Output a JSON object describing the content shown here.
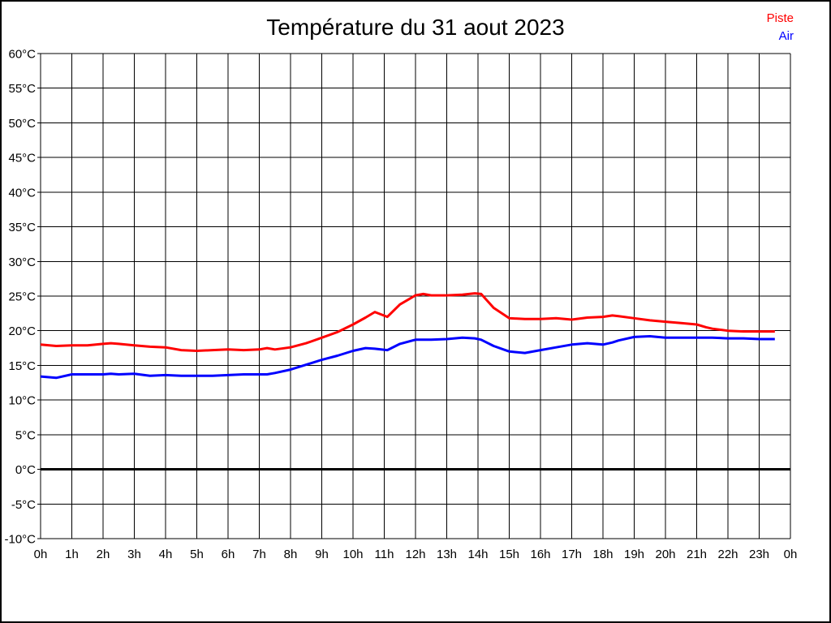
{
  "title": "Température du 31 aout 2023",
  "legend": [
    {
      "label": "Piste",
      "color": "#ff0000"
    },
    {
      "label": "Air",
      "color": "#0000ff"
    }
  ],
  "colors": {
    "piste_line": "#ff0000",
    "air_line": "#0000ff",
    "grid": "#000000",
    "zero_line": "#000000",
    "background": "#ffffff"
  },
  "chart_data": {
    "type": "line",
    "title": "Température du 31 aout 2023",
    "xlabel": "",
    "ylabel": "",
    "xlim": [
      0,
      24
    ],
    "ylim": [
      -10,
      60
    ],
    "grid": true,
    "zero_line_bold": true,
    "legend_position": "top-right",
    "x_unit": "hours",
    "y_unit": "°C",
    "x_ticks": [
      0,
      1,
      2,
      3,
      4,
      5,
      6,
      7,
      8,
      9,
      10,
      11,
      12,
      13,
      14,
      15,
      16,
      17,
      18,
      19,
      20,
      21,
      22,
      23,
      24
    ],
    "x_tick_labels": [
      "0h",
      "1h",
      "2h",
      "3h",
      "4h",
      "5h",
      "6h",
      "7h",
      "8h",
      "9h",
      "10h",
      "11h",
      "12h",
      "13h",
      "14h",
      "15h",
      "16h",
      "17h",
      "18h",
      "19h",
      "20h",
      "21h",
      "22h",
      "23h",
      "0h"
    ],
    "y_ticks": [
      60,
      55,
      50,
      45,
      40,
      35,
      30,
      25,
      20,
      15,
      10,
      5,
      0,
      -5,
      -10
    ],
    "y_tick_labels": [
      "60°C",
      "55°C",
      "50°C",
      "45°C",
      "40°C",
      "35°C",
      "30°C",
      "25°C",
      "20°C",
      "15°C",
      "10°C",
      "5°C",
      "0°C",
      "-5°C",
      "-10°C"
    ],
    "x": [
      0,
      0.5,
      1,
      1.5,
      2,
      2.25,
      2.5,
      3,
      3.5,
      4,
      4.5,
      5,
      5.5,
      6,
      6.5,
      7,
      7.25,
      7.5,
      8,
      8.5,
      9,
      9.5,
      10,
      10.4,
      10.7,
      11.1,
      11.5,
      12,
      12.25,
      12.5,
      13,
      13.5,
      13.9,
      14.1,
      14.5,
      15,
      15.5,
      16,
      16.5,
      17,
      17.5,
      18,
      18.3,
      18.5,
      19,
      19.5,
      20,
      20.5,
      21,
      21.3,
      21.5,
      22,
      22.5,
      23,
      23.5
    ],
    "series": [
      {
        "name": "Piste",
        "color": "#ff0000",
        "values": [
          18.0,
          17.8,
          17.9,
          17.9,
          18.1,
          18.2,
          18.1,
          17.9,
          17.7,
          17.6,
          17.2,
          17.1,
          17.2,
          17.3,
          17.2,
          17.3,
          17.5,
          17.3,
          17.6,
          18.2,
          19.0,
          19.8,
          20.9,
          21.9,
          22.7,
          22.0,
          23.8,
          25.1,
          25.3,
          25.1,
          25.1,
          25.2,
          25.4,
          25.3,
          23.3,
          21.8,
          21.7,
          21.7,
          21.8,
          21.6,
          21.9,
          22.0,
          22.2,
          22.1,
          21.8,
          21.5,
          21.3,
          21.1,
          20.9,
          20.5,
          20.3,
          20.0,
          19.9,
          19.9,
          19.9
        ]
      },
      {
        "name": "Air",
        "color": "#0000ff",
        "values": [
          13.4,
          13.2,
          13.7,
          13.7,
          13.7,
          13.8,
          13.7,
          13.8,
          13.5,
          13.6,
          13.5,
          13.5,
          13.5,
          13.6,
          13.7,
          13.7,
          13.7,
          13.9,
          14.4,
          15.1,
          15.8,
          16.4,
          17.1,
          17.5,
          17.4,
          17.2,
          18.1,
          18.7,
          18.7,
          18.7,
          18.8,
          19.0,
          18.9,
          18.7,
          17.8,
          17.0,
          16.8,
          17.2,
          17.6,
          18.0,
          18.2,
          18.0,
          18.3,
          18.6,
          19.1,
          19.2,
          19.0,
          19.0,
          19.0,
          19.0,
          19.0,
          18.9,
          18.9,
          18.8,
          18.8
        ]
      }
    ]
  }
}
